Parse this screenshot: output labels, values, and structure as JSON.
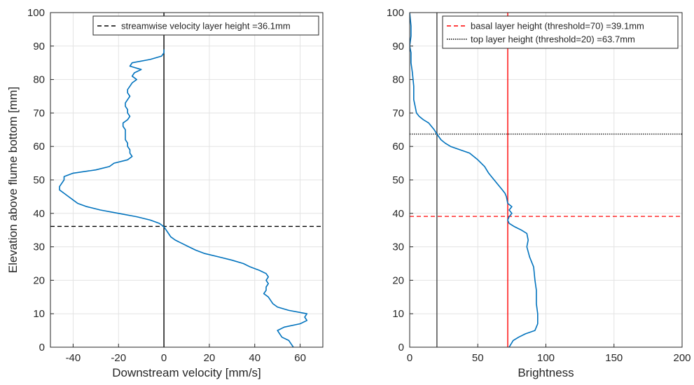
{
  "chart_data": [
    {
      "type": "line",
      "xlabel": "Downstream velocity [mm/s]",
      "ylabel": "Elevation above flume bottom [mm]",
      "xlim": [
        -50,
        70
      ],
      "ylim": [
        0,
        100
      ],
      "xticks": [
        -40,
        -20,
        0,
        20,
        40,
        60
      ],
      "yticks": [
        0,
        10,
        20,
        30,
        40,
        50,
        60,
        70,
        80,
        90,
        100
      ],
      "grid": true,
      "legend_position": "top-right",
      "series": [
        {
          "color": "#0072BD",
          "points": [
            [
              57,
              0
            ],
            [
              55,
              2
            ],
            [
              52,
              3
            ],
            [
              51,
              4
            ],
            [
              50,
              5
            ],
            [
              53,
              6
            ],
            [
              60,
              7
            ],
            [
              63,
              8
            ],
            [
              62,
              9
            ],
            [
              63,
              10
            ],
            [
              55,
              11
            ],
            [
              50,
              12
            ],
            [
              48,
              13
            ],
            [
              47,
              14
            ],
            [
              46,
              15
            ],
            [
              44,
              16
            ],
            [
              45,
              17
            ],
            [
              45,
              18
            ],
            [
              46,
              19
            ],
            [
              45,
              20
            ],
            [
              46,
              21
            ],
            [
              45,
              22
            ],
            [
              42,
              23
            ],
            [
              38,
              24
            ],
            [
              35,
              25
            ],
            [
              30,
              26
            ],
            [
              24,
              27
            ],
            [
              18,
              28
            ],
            [
              14,
              29
            ],
            [
              11,
              30
            ],
            [
              8,
              31
            ],
            [
              5,
              32
            ],
            [
              3,
              33
            ],
            [
              2,
              34
            ],
            [
              1,
              35
            ],
            [
              0,
              36
            ],
            [
              -2,
              37
            ],
            [
              -6,
              38
            ],
            [
              -12,
              39
            ],
            [
              -20,
              40
            ],
            [
              -28,
              41
            ],
            [
              -34,
              42
            ],
            [
              -38,
              43
            ],
            [
              -40,
              44
            ],
            [
              -42,
              45
            ],
            [
              -44,
              46
            ],
            [
              -46,
              47
            ],
            [
              -46,
              48
            ],
            [
              -45,
              49
            ],
            [
              -44,
              50
            ],
            [
              -44,
              51
            ],
            [
              -40,
              52
            ],
            [
              -30,
              53
            ],
            [
              -24,
              54
            ],
            [
              -22,
              55
            ],
            [
              -16,
              56
            ],
            [
              -14,
              57
            ],
            [
              -15,
              58
            ],
            [
              -15,
              59
            ],
            [
              -16,
              60
            ],
            [
              -16,
              61
            ],
            [
              -17,
              62
            ],
            [
              -17,
              63
            ],
            [
              -17,
              64
            ],
            [
              -17,
              65
            ],
            [
              -18,
              66
            ],
            [
              -18,
              67
            ],
            [
              -16,
              68
            ],
            [
              -15,
              69
            ],
            [
              -16,
              70
            ],
            [
              -16,
              71
            ],
            [
              -17,
              72
            ],
            [
              -17,
              73
            ],
            [
              -16,
              74
            ],
            [
              -15,
              75
            ],
            [
              -16,
              76
            ],
            [
              -16,
              77
            ],
            [
              -15,
              78
            ],
            [
              -14,
              79
            ],
            [
              -12,
              80
            ],
            [
              -14,
              81
            ],
            [
              -13,
              82
            ],
            [
              -10,
              83
            ],
            [
              -15,
              84
            ],
            [
              -14,
              85
            ],
            [
              -6,
              86
            ],
            [
              -1,
              87
            ],
            [
              0,
              88
            ],
            [
              0,
              89
            ]
          ]
        }
      ],
      "reference_lines": [
        {
          "orientation": "horizontal",
          "value": 36.1,
          "style": "dashed",
          "color": "#000000",
          "label": "streamwise velocity layer height =36.1mm",
          "in_legend": true
        },
        {
          "orientation": "vertical",
          "value": 0,
          "style": "solid",
          "color": "#000000",
          "in_legend": false
        }
      ]
    },
    {
      "type": "line",
      "xlabel": "Brightness",
      "ylabel": "",
      "xlim": [
        0,
        200
      ],
      "ylim": [
        0,
        100
      ],
      "xticks": [
        0,
        50,
        100,
        150,
        200
      ],
      "yticks": [
        0,
        10,
        20,
        30,
        40,
        50,
        60,
        70,
        80,
        90,
        100
      ],
      "grid": true,
      "legend_position": "top-right",
      "series": [
        {
          "color": "#0072BD",
          "points": [
            [
              73,
              0
            ],
            [
              76,
              2
            ],
            [
              80,
              3
            ],
            [
              85,
              4
            ],
            [
              92,
              5
            ],
            [
              94,
              7
            ],
            [
              94,
              10
            ],
            [
              93,
              13
            ],
            [
              93,
              17
            ],
            [
              92,
              20
            ],
            [
              91,
              24
            ],
            [
              88,
              27
            ],
            [
              86,
              30
            ],
            [
              87,
              32
            ],
            [
              86,
              34
            ],
            [
              82,
              35
            ],
            [
              77,
              36
            ],
            [
              73,
              37
            ],
            [
              72,
              38
            ],
            [
              73,
              39
            ],
            [
              75,
              40
            ],
            [
              73,
              41
            ],
            [
              75,
              42
            ],
            [
              72,
              43
            ],
            [
              71,
              45
            ],
            [
              70,
              46
            ],
            [
              68,
              47
            ],
            [
              64,
              49
            ],
            [
              58,
              52
            ],
            [
              55,
              54
            ],
            [
              50,
              56
            ],
            [
              44,
              58
            ],
            [
              37,
              59
            ],
            [
              30,
              60
            ],
            [
              26,
              61
            ],
            [
              23,
              62
            ],
            [
              20,
              63.7
            ],
            [
              18,
              65
            ],
            [
              14,
              67
            ],
            [
              10,
              68
            ],
            [
              7,
              69
            ],
            [
              5,
              70
            ],
            [
              4,
              72
            ],
            [
              3,
              74
            ],
            [
              3,
              78
            ],
            [
              2,
              82
            ],
            [
              1,
              85
            ],
            [
              1,
              88
            ],
            [
              0,
              90
            ],
            [
              1,
              93
            ],
            [
              1,
              96
            ],
            [
              0,
              100
            ]
          ]
        }
      ],
      "reference_lines": [
        {
          "orientation": "horizontal",
          "value": 39.1,
          "style": "dashed",
          "color": "#ff0000",
          "label": "basal layer height (threshold=70) =39.1mm",
          "in_legend": true
        },
        {
          "orientation": "horizontal",
          "value": 63.7,
          "style": "dotted",
          "color": "#000000",
          "label": "top layer height (threshold=20) =63.7mm",
          "in_legend": true
        },
        {
          "orientation": "vertical",
          "value": 72,
          "style": "solid",
          "color": "#ff0000",
          "in_legend": false
        },
        {
          "orientation": "vertical",
          "value": 20,
          "style": "solid",
          "color": "#404040",
          "in_legend": false
        }
      ]
    }
  ]
}
